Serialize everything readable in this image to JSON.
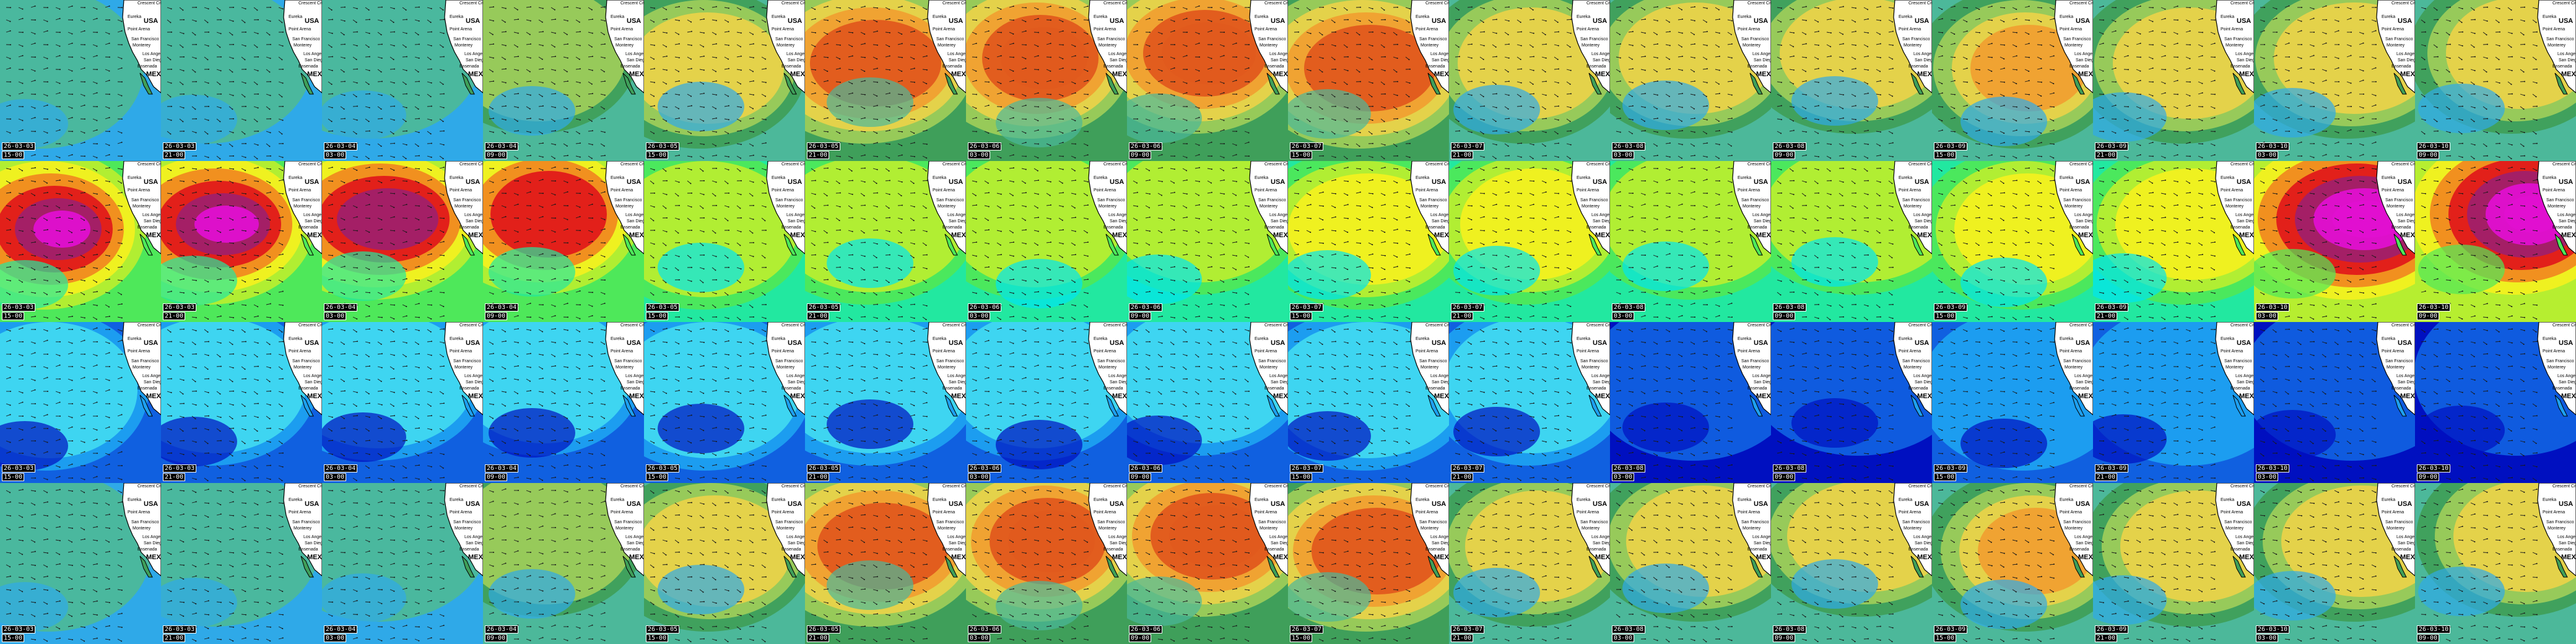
{
  "grid": {
    "rows": 4,
    "cols": 16
  },
  "columns": [
    {
      "date": "26-03-03",
      "time": "15-00"
    },
    {
      "date": "26-03-03",
      "time": "21-00"
    },
    {
      "date": "26-03-04",
      "time": "03-00"
    },
    {
      "date": "26-03-04",
      "time": "09-00"
    },
    {
      "date": "26-03-05",
      "time": "15-00"
    },
    {
      "date": "26-03-05",
      "time": "21-00"
    },
    {
      "date": "26-03-06",
      "time": "03-00"
    },
    {
      "date": "26-03-06",
      "time": "09-00"
    },
    {
      "date": "26-03-07",
      "time": "15-00"
    },
    {
      "date": "26-03-07",
      "time": "21-00"
    },
    {
      "date": "26-03-08",
      "time": "03-00"
    },
    {
      "date": "26-03-08",
      "time": "09-00"
    },
    {
      "date": "26-03-09",
      "time": "15-00"
    },
    {
      "date": "26-03-09",
      "time": "21-00"
    },
    {
      "date": "26-03-10",
      "time": "03-00"
    },
    {
      "date": "26-03-10",
      "time": "09-00"
    }
  ],
  "rows": [
    {
      "name": "panel-row-1",
      "palette": [
        "#2fa9e8",
        "#4cb89a",
        "#3f9f5a",
        "#9ccc5a",
        "#e8d24a",
        "#f0a030",
        "#e05a1e"
      ]
    },
    {
      "name": "panel-row-2",
      "palette": [
        "#00e6f0",
        "#22e8a0",
        "#4ee85a",
        "#b6ee30",
        "#f2f020",
        "#f08a20",
        "#e01a1a",
        "#a0206a",
        "#e010d0"
      ]
    },
    {
      "name": "panel-row-3",
      "palette": [
        "#0010c0",
        "#1060e0",
        "#1ea0f0",
        "#40d8f0",
        "#30e080"
      ]
    },
    {
      "name": "panel-row-4",
      "palette": [
        "#2fa9e8",
        "#4cb89a",
        "#3f9f5a",
        "#9ccc5a",
        "#e8d24a",
        "#f0a030",
        "#e05a1e"
      ]
    }
  ],
  "intensity_rows": [
    [
      0.15,
      0.15,
      0.2,
      0.25,
      0.55,
      0.7,
      0.9,
      0.85,
      0.65,
      0.5,
      0.45,
      0.5,
      0.6,
      0.5,
      0.55,
      0.5
    ],
    [
      0.7,
      0.7,
      0.6,
      0.55,
      0.25,
      0.25,
      0.2,
      0.25,
      0.35,
      0.35,
      0.3,
      0.3,
      0.35,
      0.35,
      0.85,
      0.95
    ],
    [
      0.4,
      0.4,
      0.45,
      0.45,
      0.45,
      0.45,
      0.4,
      0.4,
      0.45,
      0.45,
      0.3,
      0.3,
      0.35,
      0.35,
      0.3,
      0.3
    ],
    [
      0.15,
      0.15,
      0.2,
      0.25,
      0.55,
      0.7,
      0.9,
      0.85,
      0.65,
      0.5,
      0.45,
      0.5,
      0.6,
      0.5,
      0.55,
      0.5
    ]
  ],
  "map_labels": {
    "city1": "Crescent City",
    "city2": "Eureka",
    "city3": "Point Arena",
    "city4": "San Francisco",
    "city5": "Monterey",
    "city6": "Los Angeles",
    "city7": "San Diego",
    "city8": "Ensenada",
    "country1": "USA",
    "country2": "MEX"
  },
  "colors": {
    "land": "#ffffff",
    "coast": "#000000",
    "arrow": "#1a1a1a"
  }
}
